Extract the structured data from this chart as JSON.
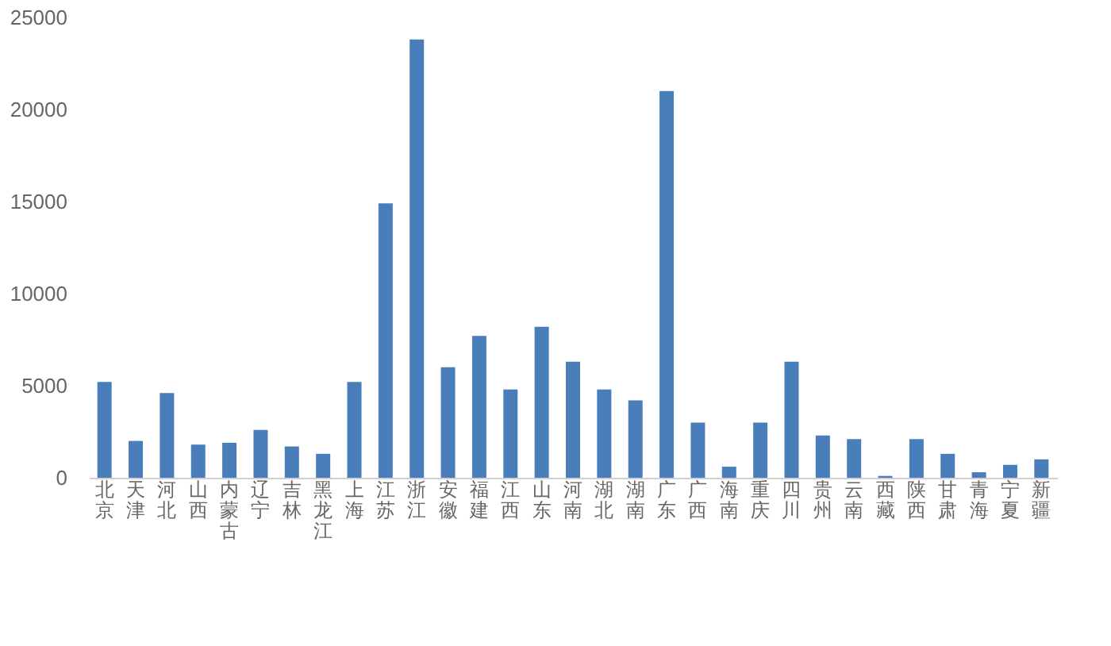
{
  "chart_data": {
    "type": "bar",
    "categories": [
      "北京",
      "天津",
      "河北",
      "山西",
      "内蒙古",
      "辽宁",
      "吉林",
      "黑龙江",
      "上海",
      "江苏",
      "浙江",
      "安徽",
      "福建",
      "江西",
      "山东",
      "河南",
      "湖北",
      "湖南",
      "广东",
      "广西",
      "海南",
      "重庆",
      "四川",
      "贵州",
      "云南",
      "西藏",
      "陕西",
      "甘肃",
      "青海",
      "宁夏",
      "新疆"
    ],
    "values": [
      5200,
      2000,
      4600,
      1800,
      1900,
      2600,
      1700,
      1300,
      5200,
      14900,
      23800,
      6000,
      7700,
      4800,
      8200,
      6300,
      4800,
      4200,
      21000,
      3000,
      600,
      3000,
      6300,
      2300,
      2100,
      100,
      2100,
      1300,
      300,
      700,
      1000
    ],
    "color": "#4a7ebb",
    "ylim": [
      0,
      25000
    ],
    "yticks": [
      0,
      5000,
      10000,
      15000,
      20000,
      25000
    ],
    "grid": false
  }
}
